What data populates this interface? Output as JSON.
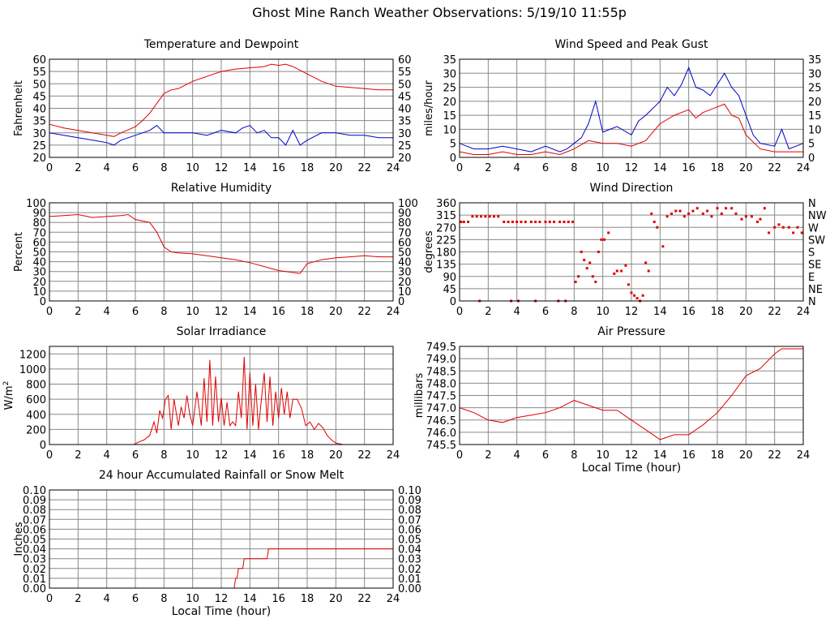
{
  "page_title": "Ghost Mine Ranch Weather Observations: 5/19/10 11:55p",
  "colors": {
    "red": "#e00000",
    "blue": "#0000cc",
    "grid": "#888888",
    "frame": "#000000"
  },
  "chart_data": [
    {
      "id": "temp",
      "type": "line",
      "title": "Temperature and Dewpoint",
      "xlabel": "",
      "ylabel": "Fahrenheit",
      "xlim": [
        0,
        24
      ],
      "ylim": [
        20,
        60
      ],
      "xticks": [
        0,
        2,
        4,
        6,
        8,
        10,
        12,
        14,
        16,
        18,
        20,
        22,
        24
      ],
      "yticks": [
        "20",
        "25",
        "30",
        "35",
        "40",
        "45",
        "50",
        "55",
        "60"
      ],
      "right_yticks": [
        "20",
        "25",
        "30",
        "35",
        "40",
        "45",
        "50",
        "55",
        "60"
      ],
      "grid": true,
      "series": [
        {
          "color": "#e00000",
          "x": [
            0,
            1,
            2,
            3,
            4,
            4.5,
            5,
            6,
            6.5,
            7,
            7.5,
            8,
            8.5,
            9,
            10,
            11,
            12,
            13,
            14,
            15,
            15.5,
            16,
            16.5,
            17,
            18,
            19,
            20,
            21,
            22,
            23,
            24
          ],
          "y": [
            33.5,
            32,
            31,
            30,
            29,
            28.5,
            30,
            32.5,
            35,
            38,
            42,
            46,
            47.5,
            48,
            51,
            53,
            55,
            56,
            56.5,
            57,
            58,
            57.5,
            58,
            57,
            54,
            51,
            49,
            48.5,
            48,
            47.5,
            47.5
          ]
        },
        {
          "color": "#0000cc",
          "x": [
            0,
            1,
            2,
            3,
            4,
            4.5,
            5,
            6,
            7,
            7.5,
            8,
            9,
            10,
            11,
            12,
            13,
            13.5,
            14,
            14.5,
            15,
            15.5,
            16,
            16.5,
            17,
            17.5,
            18,
            19,
            20,
            21,
            22,
            23,
            24
          ],
          "y": [
            30,
            29,
            28,
            27,
            26,
            25,
            27,
            29,
            31,
            33,
            30,
            30,
            30,
            29,
            31,
            30,
            32,
            33,
            30,
            31,
            28,
            28,
            25,
            31,
            25,
            27,
            30,
            30,
            29,
            29,
            28,
            28
          ]
        }
      ]
    },
    {
      "id": "wind",
      "type": "line",
      "title": "Wind Speed and Peak Gust",
      "xlabel": "",
      "ylabel": "miles/hour",
      "xlim": [
        0,
        24
      ],
      "ylim": [
        0,
        35
      ],
      "xticks": [
        0,
        2,
        4,
        6,
        8,
        10,
        12,
        14,
        16,
        18,
        20,
        22,
        24
      ],
      "yticks": [
        "0",
        "5",
        "10",
        "15",
        "20",
        "25",
        "30",
        "35"
      ],
      "right_yticks": [
        "0",
        "5",
        "10",
        "15",
        "20",
        "25",
        "30",
        "35"
      ],
      "grid": true,
      "series": [
        {
          "color": "#0000cc",
          "x": [
            0,
            0.5,
            1,
            2,
            3,
            4,
            5,
            6,
            7,
            7.5,
            8,
            8.5,
            9,
            9.5,
            10,
            10.5,
            11,
            12,
            12.5,
            13,
            14,
            14.5,
            15,
            15.5,
            16,
            16.5,
            17,
            17.5,
            18,
            18.5,
            19,
            19.5,
            20,
            20.5,
            21,
            22,
            22.5,
            23,
            24
          ],
          "y": [
            5,
            4,
            3,
            3,
            4,
            3,
            2,
            4,
            2,
            3,
            5,
            7,
            12,
            20,
            9,
            10,
            11,
            8,
            13,
            15,
            20,
            25,
            22,
            26,
            32,
            25,
            24,
            22,
            26,
            30,
            25,
            22,
            15,
            8,
            5,
            4,
            10,
            3,
            5
          ]
        },
        {
          "color": "#e00000",
          "x": [
            0,
            1,
            2,
            3,
            4,
            5,
            6,
            7,
            7.5,
            8,
            9,
            10,
            11,
            12,
            13,
            14,
            15,
            16,
            16.5,
            17,
            18,
            18.5,
            19,
            19.5,
            20,
            21,
            22,
            23,
            24
          ],
          "y": [
            2,
            1,
            1,
            2,
            1,
            1,
            2,
            1,
            2,
            3,
            6,
            5,
            5,
            4,
            6,
            12,
            15,
            17,
            14,
            16,
            18,
            19,
            15,
            14,
            8,
            3,
            2,
            2,
            2
          ]
        }
      ]
    },
    {
      "id": "rh",
      "type": "line",
      "title": "Relative Humidity",
      "xlabel": "",
      "ylabel": "Percent",
      "xlim": [
        0,
        24
      ],
      "ylim": [
        0,
        100
      ],
      "xticks": [
        0,
        2,
        4,
        6,
        8,
        10,
        12,
        14,
        16,
        18,
        20,
        22,
        24
      ],
      "yticks": [
        "0",
        "10",
        "20",
        "30",
        "40",
        "50",
        "60",
        "70",
        "80",
        "90",
        "100"
      ],
      "right_yticks": [
        "0",
        "10",
        "20",
        "30",
        "40",
        "50",
        "60",
        "70",
        "80",
        "90",
        "100"
      ],
      "grid": true,
      "series": [
        {
          "color": "#e00000",
          "x": [
            0,
            1,
            2,
            3,
            4,
            5,
            5.5,
            6,
            7,
            7.5,
            8,
            8.5,
            9,
            10,
            11,
            12,
            13,
            14,
            15,
            16,
            17,
            17.5,
            18,
            19,
            20,
            21,
            22,
            23,
            24
          ],
          "y": [
            86,
            87,
            88,
            85,
            86,
            87,
            88,
            83,
            80,
            70,
            55,
            50,
            49,
            48,
            46,
            44,
            42,
            39,
            35,
            31,
            29,
            28,
            38,
            42,
            44,
            45,
            46,
            45,
            45
          ]
        }
      ]
    },
    {
      "id": "wdir",
      "type": "scatter",
      "title": "Wind Direction",
      "xlabel": "",
      "ylabel": "degrees",
      "xlim": [
        0,
        24
      ],
      "ylim": [
        0,
        360
      ],
      "xticks": [
        0,
        2,
        4,
        6,
        8,
        10,
        12,
        14,
        16,
        18,
        20,
        22,
        24
      ],
      "yticks": [
        "0",
        "45",
        "90",
        "135",
        "180",
        "225",
        "270",
        "315",
        "360"
      ],
      "right_yticks": [
        "N",
        "NE",
        "E",
        "SE",
        "S",
        "SW",
        "W",
        "NW",
        "N"
      ],
      "grid": true,
      "series": [
        {
          "color": "#e00000",
          "x": [
            0.1,
            0.3,
            0.6,
            0.9,
            1.2,
            1.5,
            1.8,
            2.1,
            2.4,
            2.7,
            3.1,
            3.4,
            3.7,
            4.0,
            4.3,
            4.6,
            5.0,
            5.3,
            5.6,
            6.0,
            6.3,
            6.6,
            7.0,
            7.3,
            7.6,
            7.9,
            1.4,
            3.6,
            4.1,
            5.3,
            6.9,
            7.4,
            8.1,
            8.3,
            8.5,
            8.7,
            8.9,
            9.1,
            9.3,
            9.5,
            9.7,
            9.9,
            10.1,
            10.4,
            10.8,
            11.0,
            11.3,
            11.6,
            11.8,
            12.0,
            12.2,
            12.4,
            12.6,
            12.8,
            13.0,
            13.2,
            13.4,
            13.6,
            13.8,
            14.2,
            14.5,
            14.8,
            15.1,
            15.4,
            15.7,
            16.0,
            16.3,
            16.6,
            17.0,
            17.3,
            17.6,
            18.0,
            18.3,
            18.6,
            19.0,
            19.3,
            19.7,
            20.0,
            20.4,
            20.8,
            21.0,
            21.3,
            21.6,
            22.0,
            22.3,
            22.6,
            23.0,
            23.3,
            23.6,
            23.9
          ],
          "y": [
            290,
            290,
            290,
            310,
            310,
            310,
            310,
            310,
            310,
            310,
            290,
            290,
            290,
            290,
            290,
            290,
            290,
            290,
            290,
            290,
            290,
            290,
            290,
            290,
            290,
            290,
            0,
            0,
            0,
            0,
            0,
            0,
            70,
            90,
            180,
            150,
            120,
            140,
            90,
            70,
            180,
            225,
            225,
            250,
            100,
            110,
            110,
            130,
            60,
            30,
            20,
            10,
            0,
            20,
            140,
            110,
            320,
            290,
            270,
            200,
            310,
            320,
            330,
            330,
            310,
            320,
            330,
            340,
            320,
            330,
            310,
            340,
            320,
            340,
            340,
            320,
            300,
            310,
            310,
            290,
            300,
            340,
            250,
            270,
            280,
            270,
            270,
            250,
            270,
            250
          ]
        }
      ]
    },
    {
      "id": "solar",
      "type": "line",
      "title": "Solar Irradiance",
      "xlabel": "",
      "ylabel": "W/m",
      "ylabel_sup": "2",
      "xlim": [
        0,
        24
      ],
      "ylim": [
        0,
        1300
      ],
      "xticks": [
        0,
        2,
        4,
        6,
        8,
        10,
        12,
        14,
        16,
        18,
        20,
        22,
        24
      ],
      "yticks": [
        "0",
        "200",
        "400",
        "600",
        "800",
        "1000",
        "1200"
      ],
      "ytick_values": [
        0,
        200,
        400,
        600,
        800,
        1000,
        1200
      ],
      "right_yticks": [],
      "grid": true,
      "series": [
        {
          "color": "#e00000",
          "x": [
            0,
            5.9,
            6.2,
            6.6,
            7.0,
            7.3,
            7.5,
            7.7,
            7.9,
            8.1,
            8.3,
            8.5,
            8.7,
            9.0,
            9.2,
            9.4,
            9.6,
            9.8,
            10.0,
            10.3,
            10.6,
            10.8,
            11.0,
            11.2,
            11.4,
            11.6,
            11.8,
            12.0,
            12.2,
            12.4,
            12.6,
            12.8,
            13.0,
            13.2,
            13.4,
            13.6,
            13.8,
            14.0,
            14.2,
            14.4,
            14.6,
            14.8,
            15.0,
            15.2,
            15.4,
            15.6,
            15.8,
            16.0,
            16.2,
            16.4,
            16.6,
            16.8,
            17.0,
            17.3,
            17.6,
            17.9,
            18.2,
            18.5,
            18.8,
            19.1,
            19.4,
            19.7,
            20.0,
            20.5,
            24
          ],
          "y": [
            0,
            0,
            30,
            60,
            120,
            300,
            150,
            450,
            350,
            600,
            650,
            200,
            600,
            250,
            500,
            350,
            650,
            400,
            250,
            700,
            250,
            880,
            300,
            1120,
            250,
            900,
            300,
            620,
            250,
            560,
            250,
            300,
            250,
            700,
            350,
            1160,
            200,
            950,
            250,
            800,
            200,
            600,
            950,
            300,
            900,
            250,
            700,
            350,
            750,
            400,
            700,
            350,
            600,
            600,
            480,
            250,
            300,
            200,
            280,
            220,
            120,
            60,
            20,
            0,
            0
          ]
        }
      ]
    },
    {
      "id": "pressure",
      "type": "line",
      "title": "Air Pressure",
      "xlabel": "Local Time (hour)",
      "ylabel": "millibars",
      "xlim": [
        0,
        24
      ],
      "ylim": [
        745.5,
        749.5
      ],
      "xticks": [
        0,
        2,
        4,
        6,
        8,
        10,
        12,
        14,
        16,
        18,
        20,
        22,
        24
      ],
      "yticks": [
        "745.5",
        "746.0",
        "746.5",
        "747.0",
        "747.5",
        "748.0",
        "748.5",
        "749.0",
        "749.5"
      ],
      "right_yticks": [],
      "grid": true,
      "series": [
        {
          "color": "#e00000",
          "x": [
            0,
            1,
            2,
            3,
            4,
            5,
            6,
            7,
            8,
            9,
            10,
            11,
            12,
            13,
            14,
            15,
            16,
            17,
            18,
            19,
            20,
            21,
            22,
            22.5,
            23,
            24
          ],
          "y": [
            747.0,
            746.8,
            746.5,
            746.4,
            746.6,
            746.7,
            746.8,
            747.0,
            747.3,
            747.1,
            746.9,
            746.9,
            746.5,
            746.1,
            745.7,
            745.9,
            745.9,
            746.3,
            746.8,
            747.5,
            748.3,
            748.6,
            749.2,
            749.4,
            749.4,
            749.4
          ]
        }
      ]
    },
    {
      "id": "rain",
      "type": "line",
      "title": "24 hour Accumulated Rainfall or Snow Melt",
      "xlabel": "Local Time (hour)",
      "ylabel": "Inches",
      "xlim": [
        0,
        24
      ],
      "ylim": [
        0,
        0.1
      ],
      "xticks": [
        0,
        2,
        4,
        6,
        8,
        10,
        12,
        14,
        16,
        18,
        20,
        22,
        24
      ],
      "yticks": [
        "0.00",
        "0.01",
        "0.02",
        "0.03",
        "0.04",
        "0.05",
        "0.06",
        "0.07",
        "0.08",
        "0.09",
        "0.10"
      ],
      "right_yticks": [
        "0.00",
        "0.01",
        "0.02",
        "0.03",
        "0.04",
        "0.05",
        "0.06",
        "0.07",
        "0.08",
        "0.09",
        "0.10"
      ],
      "grid": true,
      "series": [
        {
          "color": "#e00000",
          "x": [
            0,
            12.9,
            13.0,
            13.1,
            13.2,
            13.5,
            13.6,
            15.2,
            15.3,
            24
          ],
          "y": [
            0,
            0,
            0.01,
            0.01,
            0.02,
            0.02,
            0.03,
            0.03,
            0.04,
            0.04
          ]
        }
      ]
    }
  ]
}
